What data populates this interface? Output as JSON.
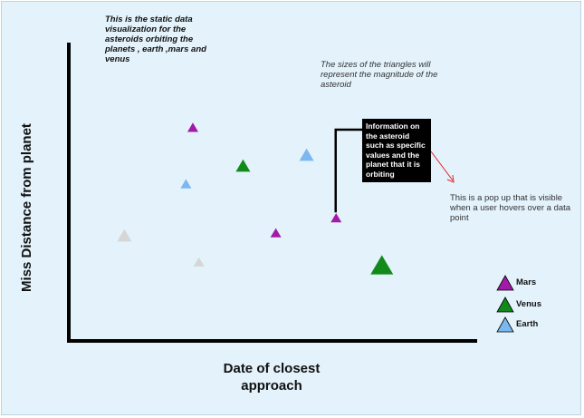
{
  "notes": {
    "intro": "This is the static data visualization for the asteroids orbiting the planets , earth ,mars and venus",
    "sizes": "The sizes of the triangles will represent the magnitude of the asteroid",
    "popup": "This is a pop up that is visible when a user hovers over a data point"
  },
  "tooltip": {
    "text": "Information on the asteroid such as specific values and the planet that it is orbiting"
  },
  "axes": {
    "ylabel": "Miss Distance  from planet",
    "xlabel": "Date of closest approach"
  },
  "legend": [
    {
      "label": "Mars",
      "color": "#a21aa8"
    },
    {
      "label": "Venus",
      "color": "#118a1a"
    },
    {
      "label": "Earth",
      "color": "#7ab8ef"
    }
  ],
  "colors": {
    "mars": "#a21aa8",
    "venus": "#118a1a",
    "earth": "#7ab8ef",
    "unassigned": "#d6d6d6",
    "axis": "#000000",
    "connector": "#000000",
    "arrow": "#e32222",
    "background": "#e3f2fb"
  },
  "chart_data": {
    "type": "scatter",
    "points": [
      {
        "series": "Mars",
        "x": 0.302,
        "y": 0.721,
        "magnitude": "small"
      },
      {
        "series": "Mars",
        "x": 0.507,
        "y": 0.362,
        "magnitude": "small"
      },
      {
        "series": "Mars",
        "x": 0.656,
        "y": 0.413,
        "magnitude": "small"
      },
      {
        "series": "Venus",
        "x": 0.426,
        "y": 0.591,
        "magnitude": "medium"
      },
      {
        "series": "Venus",
        "x": 0.769,
        "y": 0.253,
        "magnitude": "large"
      },
      {
        "series": "Earth",
        "x": 0.285,
        "y": 0.529,
        "magnitude": "small"
      },
      {
        "series": "Earth",
        "x": 0.583,
        "y": 0.628,
        "magnitude": "medium"
      },
      {
        "series": "none",
        "x": 0.133,
        "y": 0.353,
        "magnitude": "medium"
      },
      {
        "series": "none",
        "x": 0.317,
        "y": 0.263,
        "magnitude": "small"
      }
    ],
    "hovered_point_index": 2,
    "grid": false,
    "legend_position": "bottom-right"
  }
}
